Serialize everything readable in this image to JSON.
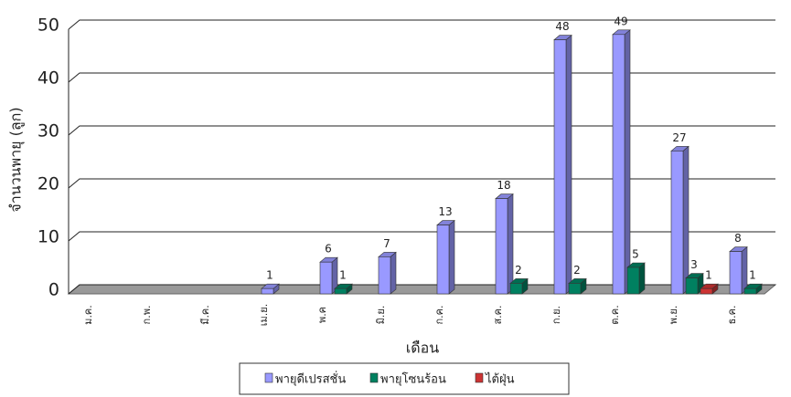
{
  "chart_data": {
    "type": "bar3d",
    "categories": [
      "ม.ค.",
      "ก.พ.",
      "มี.ค.",
      "เม.ย.",
      "พ.ค",
      "มิ.ย.",
      "ก.ค.",
      "ส.ค.",
      "ก.ย.",
      "ต.ค.",
      "พ.ย.",
      "ธ.ค."
    ],
    "series": [
      {
        "name": "พายุดีเปรสชั่น",
        "color": "#9999ff",
        "values": [
          null,
          null,
          null,
          1,
          6,
          7,
          13,
          18,
          48,
          49,
          27,
          8
        ]
      },
      {
        "name": "พายุโซนร้อน",
        "color": "#008060",
        "values": [
          null,
          null,
          null,
          null,
          1,
          null,
          null,
          2,
          2,
          5,
          3,
          1
        ]
      },
      {
        "name": "ไต้ฝุ่น",
        "color": "#cc3333",
        "values": [
          null,
          null,
          null,
          null,
          null,
          null,
          null,
          null,
          null,
          null,
          1,
          null
        ]
      }
    ],
    "y_label": "จำนวนพายุ (ลูก)",
    "x_label": "เดือน",
    "ylim": [
      0,
      50
    ],
    "yticks": [
      0,
      10,
      20,
      30,
      40,
      50
    ],
    "grid": true
  }
}
